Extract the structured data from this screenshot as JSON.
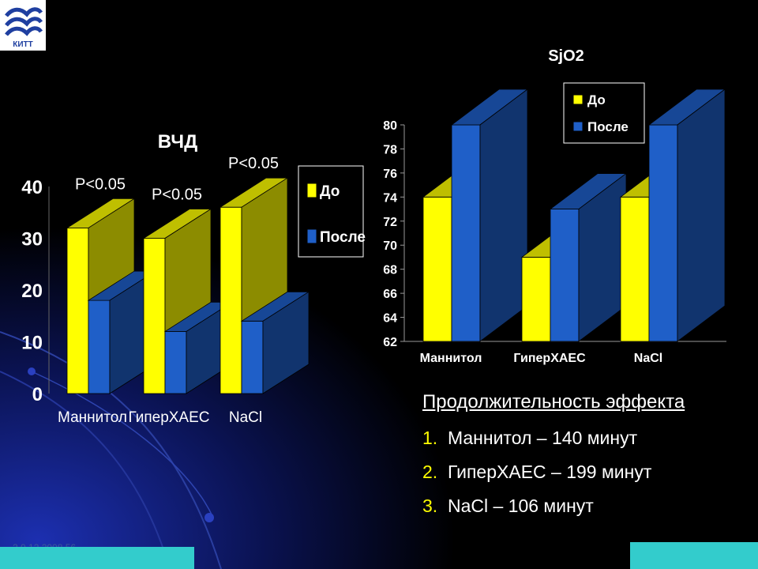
{
  "logo": {
    "text": "КИТТ"
  },
  "chart_data": [
    {
      "type": "bar",
      "title": "ВЧД",
      "categories": [
        "Маннитол",
        "ГиперХАЕС",
        "NaCl"
      ],
      "series": [
        {
          "name": "До",
          "values": [
            32,
            30,
            36
          ],
          "color": "#ffff00"
        },
        {
          "name": "После",
          "values": [
            18,
            12,
            14
          ],
          "color": "#1f5fc8"
        }
      ],
      "ylim": [
        0,
        40
      ],
      "yticks": [
        0,
        10,
        20,
        30,
        40
      ],
      "annotations": [
        "P<0.05",
        "P<0.05",
        "P<0.05"
      ],
      "legend": "right"
    },
    {
      "type": "bar",
      "title": "SjO2",
      "categories": [
        "Маннитол",
        "ГиперХАЕС",
        "NaCl"
      ],
      "series": [
        {
          "name": "До",
          "values": [
            74,
            69,
            74
          ],
          "color": "#ffff00"
        },
        {
          "name": "После",
          "values": [
            80,
            73,
            80
          ],
          "color": "#1f5fc8"
        }
      ],
      "ylim": [
        62,
        80
      ],
      "yticks": [
        62,
        64,
        66,
        68,
        70,
        72,
        74,
        76,
        78,
        80
      ],
      "legend": "top-right"
    }
  ],
  "summary": {
    "title": "Продолжительность эффекта",
    "items": [
      {
        "num": "1.",
        "text": "Маннитол – 140 минут"
      },
      {
        "num": "2.",
        "text": "ГиперХАЕС – 199 минут"
      },
      {
        "num": "3.",
        "text": "NaCl – 106 минут"
      }
    ]
  },
  "footer": {
    "date": "2.0.12.2008.56"
  }
}
